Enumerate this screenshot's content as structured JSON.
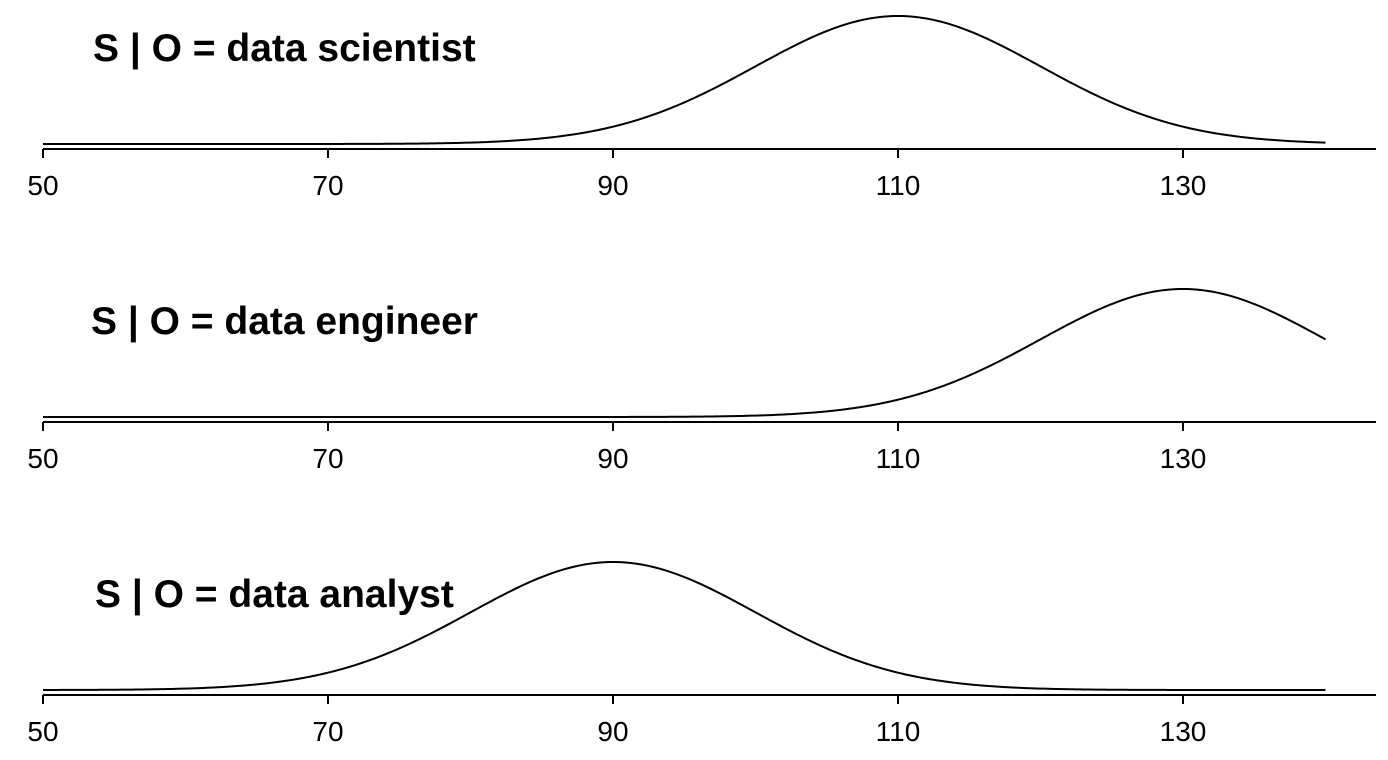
{
  "chart_data": [
    {
      "type": "line",
      "title": "S | O = data scientist",
      "distribution": "normal",
      "mean": 110,
      "sd": 10,
      "x_range": [
        50,
        140
      ],
      "xlim": [
        50,
        145
      ],
      "x_ticks": [
        50,
        70,
        90,
        110,
        130
      ],
      "xlabel": "",
      "ylabel": ""
    },
    {
      "type": "line",
      "title": "S | O = data engineer",
      "distribution": "normal",
      "mean": 130,
      "sd": 10,
      "x_range": [
        50,
        140
      ],
      "xlim": [
        50,
        145
      ],
      "x_ticks": [
        50,
        70,
        90,
        110,
        130
      ],
      "xlabel": "",
      "ylabel": ""
    },
    {
      "type": "line",
      "title": "S | O = data analyst",
      "distribution": "normal",
      "mean": 90,
      "sd": 10,
      "x_range": [
        50,
        140
      ],
      "xlim": [
        50,
        145
      ],
      "x_ticks": [
        50,
        70,
        90,
        110,
        130
      ],
      "xlabel": "",
      "ylabel": ""
    }
  ]
}
